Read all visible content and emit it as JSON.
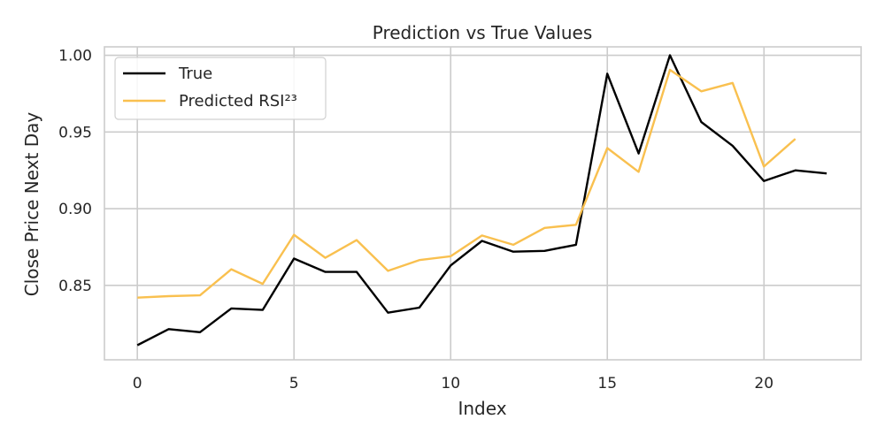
{
  "chart_data": {
    "type": "line",
    "title": "Prediction vs True Values",
    "xlabel": "Index",
    "ylabel": "Close Price Next Day",
    "xlim": [
      -1.05,
      23.1
    ],
    "ylim": [
      0.8015,
      1.0055
    ],
    "xticks": [
      0,
      5,
      10,
      15,
      20
    ],
    "xtick_labels": [
      "0",
      "5",
      "10",
      "15",
      "20"
    ],
    "yticks": [
      0.85,
      0.9,
      0.95,
      1.0
    ],
    "ytick_labels": [
      "0.85",
      "0.90",
      "0.95",
      "1.00"
    ],
    "grid": true,
    "legend_position": "top-left",
    "series": [
      {
        "name": "True",
        "color": "#000000",
        "x": [
          0,
          1,
          2,
          3,
          4,
          5,
          6,
          7,
          8,
          9,
          10,
          11,
          12,
          13,
          14,
          15,
          16,
          17,
          18,
          19,
          20,
          21,
          22
        ],
        "values": [
          0.811,
          0.8215,
          0.8195,
          0.835,
          0.834,
          0.8675,
          0.8588,
          0.8588,
          0.8322,
          0.8355,
          0.863,
          0.879,
          0.872,
          0.8725,
          0.8765,
          0.988,
          0.936,
          1.0,
          0.9565,
          0.941,
          0.918,
          0.925,
          0.923
        ]
      },
      {
        "name": "Predicted RSI²³",
        "color": "#f9c04f",
        "x": [
          0,
          1,
          2,
          3,
          4,
          5,
          6,
          7,
          8,
          9,
          10,
          11,
          12,
          13,
          14,
          15,
          16,
          17,
          18,
          19,
          20,
          21
        ],
        "values": [
          0.842,
          0.843,
          0.8435,
          0.8605,
          0.851,
          0.883,
          0.868,
          0.8795,
          0.8595,
          0.8665,
          0.869,
          0.8825,
          0.8765,
          0.8875,
          0.8895,
          0.9395,
          0.924,
          0.9905,
          0.9765,
          0.982,
          0.9275,
          0.9455
        ]
      }
    ]
  }
}
